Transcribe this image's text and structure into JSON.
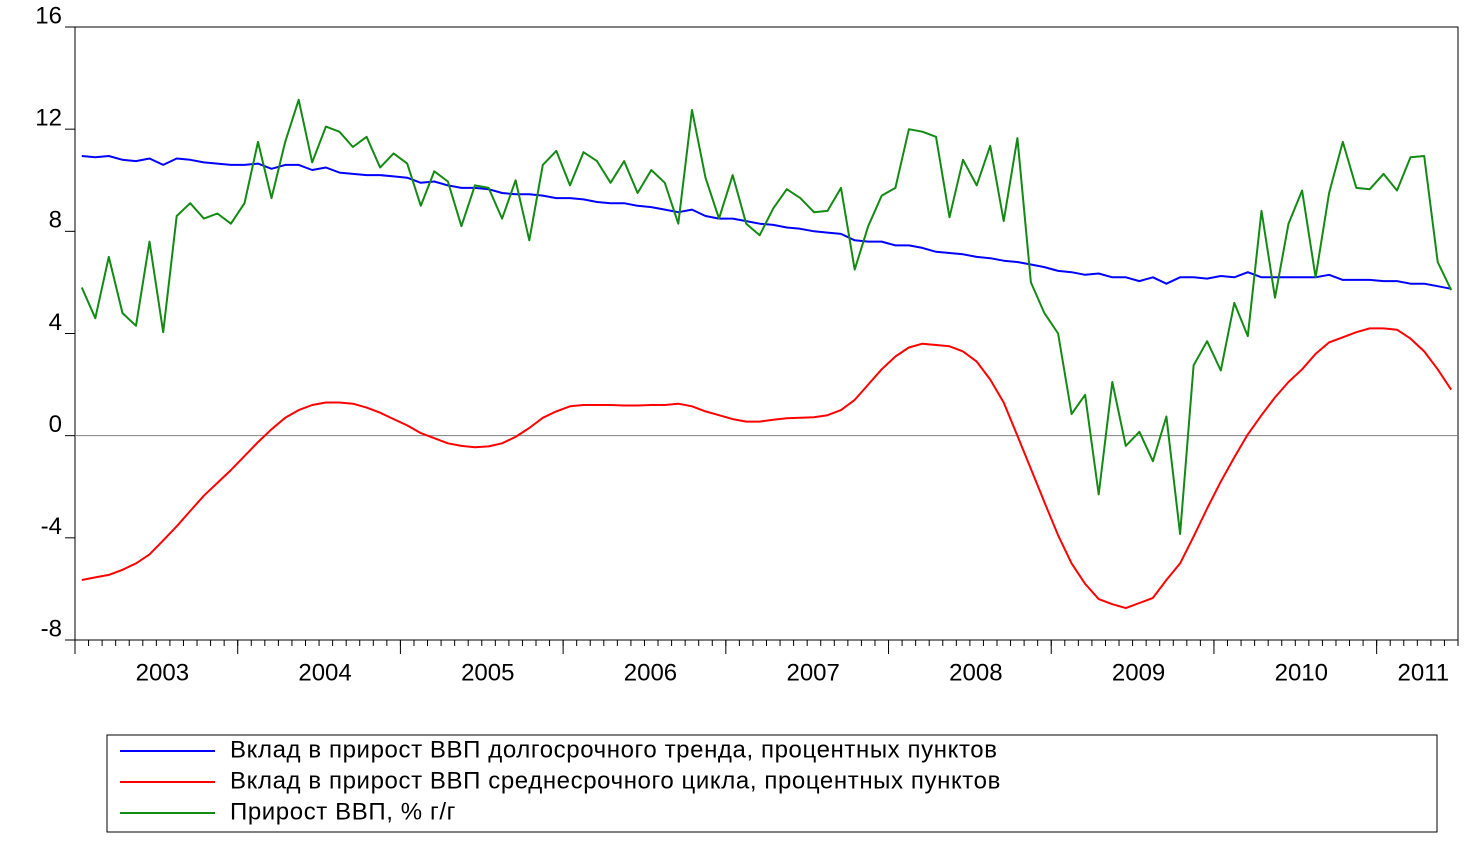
{
  "chart_data": {
    "type": "line",
    "x": [
      2003.042,
      2003.125,
      2003.208,
      2003.292,
      2003.375,
      2003.458,
      2003.542,
      2003.625,
      2003.708,
      2003.792,
      2003.875,
      2003.958,
      2004.042,
      2004.125,
      2004.208,
      2004.292,
      2004.375,
      2004.458,
      2004.542,
      2004.625,
      2004.708,
      2004.792,
      2004.875,
      2004.958,
      2005.042,
      2005.125,
      2005.208,
      2005.292,
      2005.375,
      2005.458,
      2005.542,
      2005.625,
      2005.708,
      2005.792,
      2005.875,
      2005.958,
      2006.042,
      2006.125,
      2006.208,
      2006.292,
      2006.375,
      2006.458,
      2006.542,
      2006.625,
      2006.708,
      2006.792,
      2006.875,
      2006.958,
      2007.042,
      2007.125,
      2007.208,
      2007.292,
      2007.375,
      2007.458,
      2007.542,
      2007.625,
      2007.708,
      2007.792,
      2007.875,
      2007.958,
      2008.042,
      2008.125,
      2008.208,
      2008.292,
      2008.375,
      2008.458,
      2008.542,
      2008.625,
      2008.708,
      2008.792,
      2008.875,
      2008.958,
      2009.042,
      2009.125,
      2009.208,
      2009.292,
      2009.375,
      2009.458,
      2009.542,
      2009.625,
      2009.708,
      2009.792,
      2009.875,
      2009.958,
      2010.042,
      2010.125,
      2010.208,
      2010.292,
      2010.375,
      2010.458,
      2010.542,
      2010.625,
      2010.708,
      2010.792,
      2010.875,
      2010.958,
      2011.042,
      2011.125,
      2011.208,
      2011.292,
      2011.375,
      2011.458
    ],
    "series": [
      {
        "name": "Вклад в прирост ВВП долгосрочного тренда, процентных пунктов",
        "color": "#0000ff",
        "values": [
          10.95,
          10.9,
          10.95,
          10.8,
          10.75,
          10.85,
          10.6,
          10.85,
          10.8,
          10.7,
          10.65,
          10.6,
          10.6,
          10.65,
          10.45,
          10.6,
          10.6,
          10.4,
          10.5,
          10.3,
          10.25,
          10.2,
          10.2,
          10.15,
          10.1,
          9.9,
          9.95,
          9.8,
          9.7,
          9.7,
          9.65,
          9.5,
          9.45,
          9.45,
          9.4,
          9.3,
          9.3,
          9.25,
          9.15,
          9.1,
          9.1,
          9.0,
          8.95,
          8.85,
          8.75,
          8.85,
          8.6,
          8.5,
          8.5,
          8.4,
          8.3,
          8.25,
          8.15,
          8.1,
          8.0,
          7.95,
          7.9,
          7.65,
          7.6,
          7.6,
          7.45,
          7.45,
          7.35,
          7.2,
          7.15,
          7.1,
          7.0,
          6.95,
          6.85,
          6.8,
          6.7,
          6.6,
          6.45,
          6.4,
          6.3,
          6.35,
          6.2,
          6.2,
          6.05,
          6.2,
          5.95,
          6.2,
          6.2,
          6.15,
          6.25,
          6.2,
          6.4,
          6.2,
          6.2,
          6.2,
          6.2,
          6.2,
          6.3,
          6.1,
          6.1,
          6.1,
          6.05,
          6.05,
          5.95,
          5.95,
          5.85,
          5.75
        ]
      },
      {
        "name": "Вклад в прирост ВВП среднесрочного цикла, процентных пунктов",
        "color": "#ff0000",
        "values": [
          -5.65,
          -5.55,
          -5.45,
          -5.25,
          -5.0,
          -4.65,
          -4.1,
          -3.55,
          -2.95,
          -2.35,
          -1.85,
          -1.35,
          -0.8,
          -0.25,
          0.25,
          0.7,
          1.0,
          1.2,
          1.3,
          1.3,
          1.25,
          1.1,
          0.9,
          0.65,
          0.4,
          0.1,
          -0.1,
          -0.3,
          -0.4,
          -0.45,
          -0.42,
          -0.3,
          -0.05,
          0.3,
          0.7,
          0.95,
          1.15,
          1.2,
          1.2,
          1.2,
          1.18,
          1.18,
          1.2,
          1.2,
          1.25,
          1.15,
          0.95,
          0.8,
          0.65,
          0.55,
          0.55,
          0.62,
          0.68,
          0.7,
          0.72,
          0.8,
          1.0,
          1.4,
          2.0,
          2.6,
          3.1,
          3.45,
          3.6,
          3.55,
          3.5,
          3.3,
          2.9,
          2.2,
          1.3,
          0.0,
          -1.3,
          -2.6,
          -3.9,
          -5.0,
          -5.8,
          -6.4,
          -6.6,
          -6.75,
          -6.55,
          -6.35,
          -5.65,
          -5.0,
          -3.95,
          -2.85,
          -1.8,
          -0.85,
          0.05,
          0.8,
          1.5,
          2.1,
          2.6,
          3.2,
          3.65,
          3.85,
          4.05,
          4.2,
          4.2,
          4.15,
          3.8,
          3.3,
          2.6,
          1.8
        ]
      },
      {
        "name": "Прирост ВВП, % г/г",
        "color": "#138a13",
        "values": [
          5.8,
          4.6,
          7.0,
          4.8,
          4.3,
          7.6,
          4.05,
          8.6,
          9.1,
          8.5,
          8.7,
          8.3,
          9.1,
          11.5,
          9.3,
          11.5,
          13.15,
          10.7,
          12.1,
          11.9,
          11.3,
          11.7,
          10.5,
          11.05,
          10.65,
          9.0,
          10.35,
          9.95,
          8.2,
          9.8,
          9.7,
          8.5,
          10.0,
          7.65,
          10.6,
          11.15,
          9.8,
          11.1,
          10.75,
          9.9,
          10.75,
          9.5,
          10.4,
          9.9,
          8.3,
          12.75,
          10.1,
          8.5,
          10.2,
          8.3,
          7.85,
          8.9,
          9.65,
          9.3,
          8.75,
          8.8,
          9.7,
          6.5,
          8.2,
          9.4,
          9.7,
          12.0,
          11.9,
          11.7,
          8.55,
          10.8,
          9.8,
          11.35,
          8.4,
          11.65,
          6.0,
          4.8,
          4.0,
          0.85,
          1.6,
          -2.3,
          2.1,
          -0.4,
          0.15,
          -1.0,
          0.75,
          -3.85,
          2.75,
          3.7,
          2.55,
          5.2,
          3.9,
          8.8,
          5.4,
          8.3,
          9.6,
          6.2,
          9.5,
          11.5,
          9.7,
          9.65,
          10.25,
          9.6,
          10.9,
          10.95,
          6.8,
          5.7
        ]
      }
    ],
    "xlim": [
      2003,
      2011.5
    ],
    "xticks": [
      2003,
      2004,
      2005,
      2006,
      2007,
      2008,
      2009,
      2010,
      2011
    ],
    "ylim": [
      -8,
      16
    ],
    "yticks": [
      -8,
      -4,
      0,
      4,
      8,
      12,
      16
    ],
    "zero_line": true,
    "legend": "bottom"
  }
}
